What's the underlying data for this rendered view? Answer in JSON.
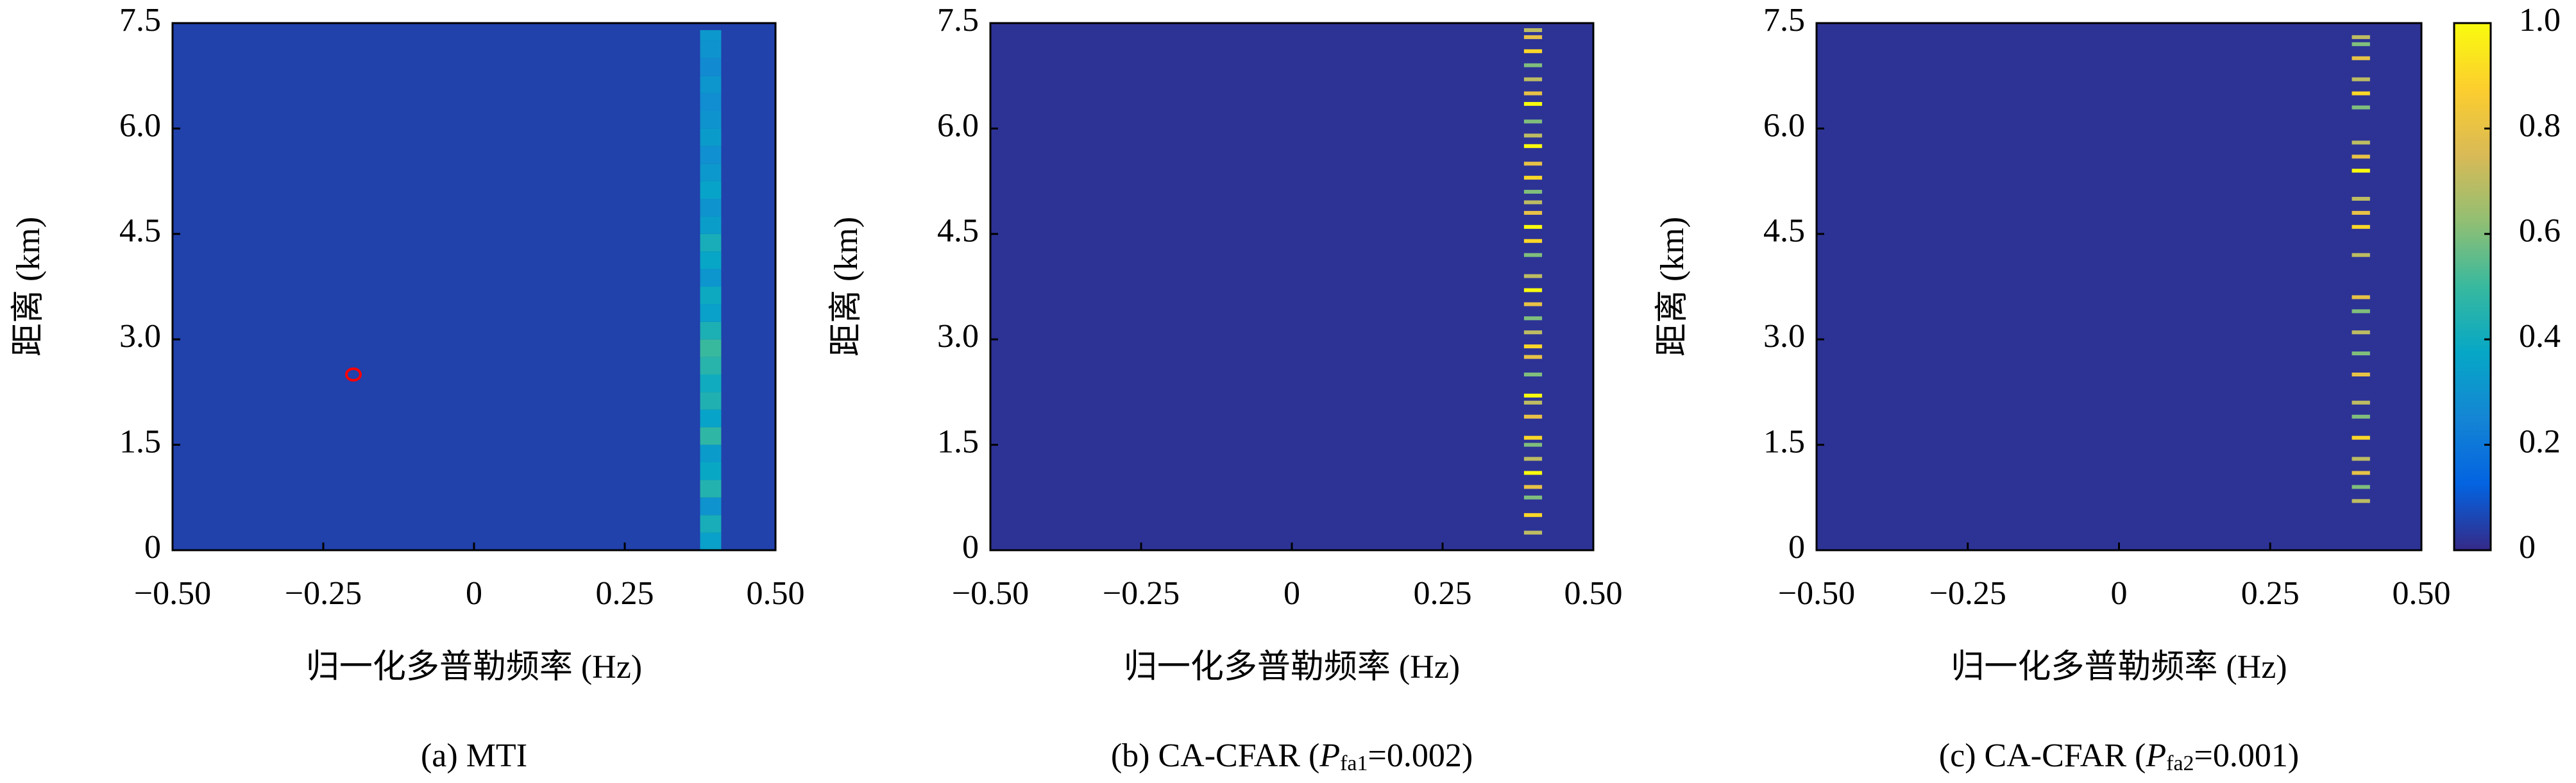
{
  "chart_data": [
    {
      "type": "heatmap",
      "caption": {
        "prefix": "(a) MTI"
      },
      "xlabel": "归一化多普勒频率 (Hz)",
      "ylabel": "距离 (km)",
      "xlim": [
        -0.5,
        0.5
      ],
      "ylim": [
        0,
        7.5
      ],
      "xticks": [
        {
          "value": -0.5,
          "label": "−0.50"
        },
        {
          "value": -0.25,
          "label": "−0.25"
        },
        0,
        0.25,
        {
          "value": 0.5,
          "label": "0.50"
        }
      ],
      "yticks": [
        0,
        1.5,
        {
          "value": 3,
          "label": "3.0"
        },
        4.5,
        {
          "value": 6,
          "label": "6.0"
        },
        7.5
      ],
      "background": 0.05,
      "strips": {
        "x": [
          0.375,
          0.41
        ],
        "y": [
          0,
          0.25,
          0.5,
          0.75,
          1,
          1.25,
          1.5,
          1.75,
          2,
          2.25,
          2.5,
          2.75,
          3,
          3.25,
          3.5,
          3.75,
          4,
          4.25,
          4.5,
          4.75,
          5,
          5.25,
          5.5,
          5.75,
          6,
          6.25,
          6.5,
          6.75,
          7,
          7.25
        ],
        "values": [
          0.35,
          0.42,
          0.3,
          0.45,
          0.38,
          0.33,
          0.48,
          0.36,
          0.44,
          0.4,
          0.46,
          0.5,
          0.43,
          0.35,
          0.39,
          0.31,
          0.37,
          0.42,
          0.34,
          0.3,
          0.36,
          0.32,
          0.29,
          0.33,
          0.3,
          0.28,
          0.31,
          0.27,
          0.3,
          0.32
        ]
      },
      "annotation": {
        "x": -0.2,
        "y": 2.5,
        "color": "#ff0000"
      }
    },
    {
      "type": "heatmap",
      "caption": {
        "prefix": "(b) CA-CFAR (",
        "symbol": "P",
        "subscript": "fa1",
        "suffix": "=0.002)"
      },
      "xlabel": "归一化多普勒频率 (Hz)",
      "ylabel": "距离 (km)",
      "xlim": [
        -0.5,
        0.5
      ],
      "ylim": [
        0,
        7.5
      ],
      "xticks": [
        {
          "value": -0.5,
          "label": "−0.50"
        },
        {
          "value": -0.25,
          "label": "−0.25"
        },
        0,
        0.25,
        {
          "value": 0.5,
          "label": "0.50"
        }
      ],
      "yticks": [
        0,
        1.5,
        {
          "value": 3,
          "label": "3.0"
        },
        4.5,
        {
          "value": 6,
          "label": "6.0"
        },
        7.5
      ],
      "background": 0.02,
      "detections": {
        "x": [
          0.385,
          0.415
        ],
        "y": [
          0.25,
          0.5,
          0.75,
          0.9,
          1.1,
          1.3,
          1.5,
          1.6,
          1.9,
          2.1,
          2.2,
          2.5,
          2.75,
          2.9,
          3.1,
          3.3,
          3.5,
          3.7,
          3.9,
          4.2,
          4.4,
          4.6,
          4.8,
          4.95,
          5.1,
          5.3,
          5.5,
          5.75,
          5.9,
          6.1,
          6.35,
          6.5,
          6.7,
          6.9,
          7.1,
          7.3,
          7.4
        ],
        "values": [
          0.7,
          0.9,
          0.6,
          0.8,
          1,
          0.7,
          0.6,
          0.9,
          0.8,
          0.7,
          1,
          0.6,
          0.8,
          0.9,
          0.7,
          0.6,
          0.8,
          1,
          0.7,
          0.6,
          0.9,
          1,
          0.8,
          0.7,
          0.6,
          0.9,
          0.8,
          1,
          0.7,
          0.6,
          1,
          0.8,
          0.7,
          0.6,
          0.9,
          0.8,
          0.7
        ]
      }
    },
    {
      "type": "heatmap",
      "caption": {
        "prefix": "(c) CA-CFAR (",
        "symbol": "P",
        "subscript": "fa2",
        "suffix": "=0.001)"
      },
      "xlabel": "归一化多普勒频率 (Hz)",
      "ylabel": "距离 (km)",
      "xlim": [
        -0.5,
        0.5
      ],
      "ylim": [
        0,
        7.5
      ],
      "xticks": [
        {
          "value": -0.5,
          "label": "−0.50"
        },
        {
          "value": -0.25,
          "label": "−0.25"
        },
        0,
        0.25,
        {
          "value": 0.5,
          "label": "0.50"
        }
      ],
      "yticks": [
        0,
        1.5,
        {
          "value": 3,
          "label": "3.0"
        },
        4.5,
        {
          "value": 6,
          "label": "6.0"
        },
        7.5
      ],
      "background": 0.02,
      "detections": {
        "x": [
          0.385,
          0.415
        ],
        "y": [
          0.7,
          0.9,
          1.1,
          1.3,
          1.6,
          1.9,
          2.1,
          2.5,
          2.8,
          3.1,
          3.4,
          3.6,
          4.2,
          4.6,
          4.8,
          5,
          5.4,
          5.6,
          5.8,
          6.3,
          6.5,
          6.7,
          7,
          7.2,
          7.3
        ],
        "values": [
          0.7,
          0.6,
          0.8,
          0.7,
          0.9,
          0.6,
          0.7,
          0.8,
          0.6,
          0.7,
          0.6,
          0.8,
          0.7,
          0.9,
          0.8,
          0.7,
          1,
          0.8,
          0.7,
          0.6,
          0.9,
          0.7,
          0.8,
          0.6,
          0.7
        ]
      },
      "colorbar": {
        "lim": [
          0,
          1
        ],
        "ticks": [
          0,
          0.2,
          0.4,
          0.6,
          0.8,
          {
            "value": 1,
            "label": "1.0"
          }
        ]
      }
    }
  ]
}
